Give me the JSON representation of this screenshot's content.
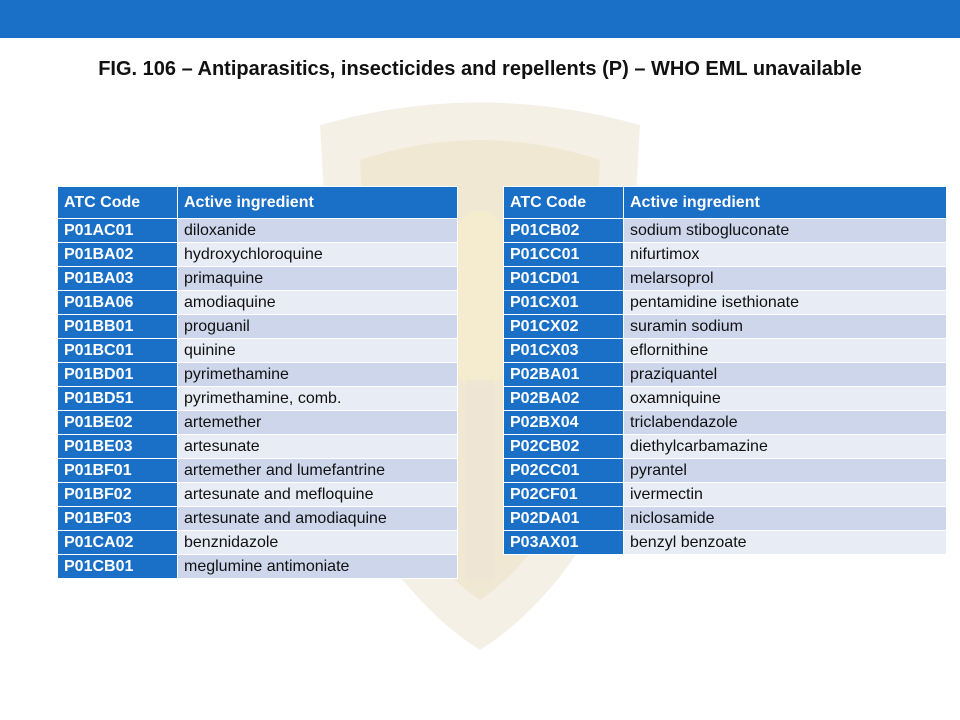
{
  "title": "FIG. 106 – Antiparasitics, insecticides and repellents (P)  – WHO EML unavailable",
  "tables": [
    {
      "columns": [
        "ATC Code",
        "Active ingredient"
      ],
      "rows": [
        [
          "P01AC01",
          "diloxanide"
        ],
        [
          "P01BA02",
          "hydroxychloroquine"
        ],
        [
          "P01BA03",
          "primaquine"
        ],
        [
          "P01BA06",
          "amodiaquine"
        ],
        [
          "P01BB01",
          "proguanil"
        ],
        [
          "P01BC01",
          "quinine"
        ],
        [
          "P01BD01",
          "pyrimethamine"
        ],
        [
          "P01BD51",
          "pyrimethamine, comb."
        ],
        [
          "P01BE02",
          "artemether"
        ],
        [
          "P01BE03",
          "artesunate"
        ],
        [
          "P01BF01",
          "artemether and lumefantrine"
        ],
        [
          "P01BF02",
          "artesunate and mefloquine"
        ],
        [
          "P01BF03",
          "artesunate and amodiaquine"
        ],
        [
          "P01CA02",
          "benznidazole"
        ],
        [
          "P01CB01",
          "meglumine antimoniate"
        ]
      ]
    },
    {
      "columns": [
        "ATC Code",
        "Active ingredient"
      ],
      "rows": [
        [
          "P01CB02",
          "sodium stibogluconate"
        ],
        [
          "P01CC01",
          "nifurtimox"
        ],
        [
          "P01CD01",
          "melarsoprol"
        ],
        [
          "P01CX01",
          "pentamidine isethionate"
        ],
        [
          "P01CX02",
          "suramin sodium"
        ],
        [
          "P01CX03",
          "eflornithine"
        ],
        [
          "P02BA01",
          "praziquantel"
        ],
        [
          "P02BA02",
          "oxamniquine"
        ],
        [
          "P02BX04",
          "triclabendazole"
        ],
        [
          "P02CB02",
          "diethylcarbamazine"
        ],
        [
          "P02CC01",
          "pyrantel"
        ],
        [
          "P02CF01",
          "ivermectin"
        ],
        [
          "P02DA01",
          "niclosamide"
        ],
        [
          "P03AX01",
          "benzyl benzoate"
        ]
      ]
    }
  ]
}
